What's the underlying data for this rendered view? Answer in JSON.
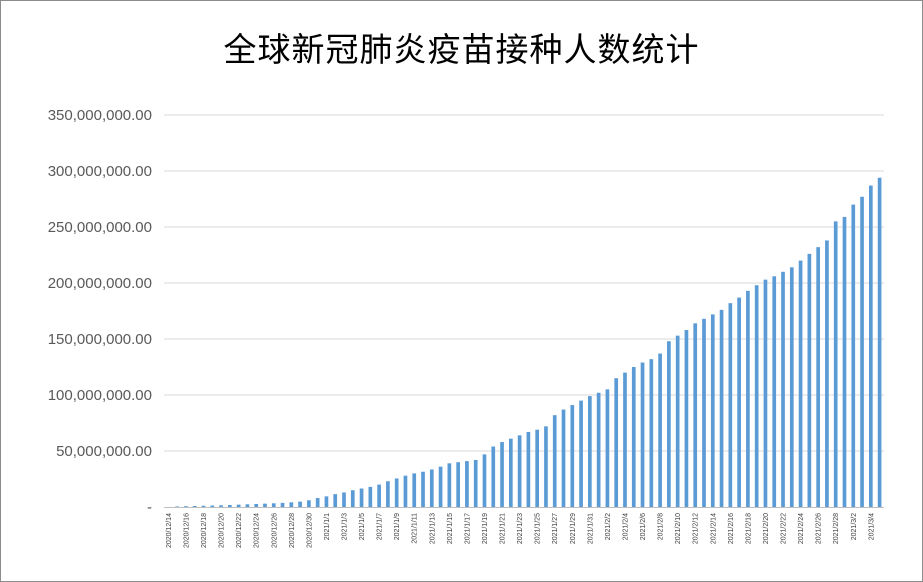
{
  "chart_data": {
    "type": "bar",
    "title": "全球新冠肺炎疫苗接种人数统计",
    "xlabel": "",
    "ylabel": "",
    "ylim": [
      0,
      350000000
    ],
    "yticks": [
      {
        "value": 0,
        "label": "-"
      },
      {
        "value": 50000000,
        "label": "50,000,000.00"
      },
      {
        "value": 100000000,
        "label": "100,000,000.00"
      },
      {
        "value": 150000000,
        "label": "150,000,000.00"
      },
      {
        "value": 200000000,
        "label": "200,000,000.00"
      },
      {
        "value": 250000000,
        "label": "250,000,000.00"
      },
      {
        "value": 300000000,
        "label": "300,000,000.00"
      },
      {
        "value": 350000000,
        "label": "350,000,000.00"
      }
    ],
    "grid": true,
    "legend": "none",
    "bar_color": "#5b9bd5",
    "categories": [
      "2020/12/14",
      "2020/12/15",
      "2020/12/16",
      "2020/12/17",
      "2020/12/18",
      "2020/12/19",
      "2020/12/20",
      "2020/12/21",
      "2020/12/22",
      "2020/12/23",
      "2020/12/24",
      "2020/12/25",
      "2020/12/26",
      "2020/12/27",
      "2020/12/28",
      "2020/12/29",
      "2020/12/30",
      "2020/12/31",
      "2021/1/1",
      "2021/1/2",
      "2021/1/3",
      "2021/1/4",
      "2021/1/5",
      "2021/1/6",
      "2021/1/7",
      "2021/1/8",
      "2021/1/9",
      "2021/1/10",
      "2021/1/11",
      "2021/1/12",
      "2021/1/13",
      "2021/1/14",
      "2021/1/15",
      "2021/1/16",
      "2021/1/17",
      "2021/1/18",
      "2021/1/19",
      "2021/1/20",
      "2021/1/21",
      "2021/1/22",
      "2021/1/23",
      "2021/1/24",
      "2021/1/25",
      "2021/1/26",
      "2021/1/27",
      "2021/1/28",
      "2021/1/29",
      "2021/1/30",
      "2021/1/31",
      "2021/2/1",
      "2021/2/2",
      "2021/2/3",
      "2021/2/4",
      "2021/2/5",
      "2021/2/6",
      "2021/2/7",
      "2021/2/8",
      "2021/2/9",
      "2021/2/10",
      "2021/2/11",
      "2021/2/12",
      "2021/2/13",
      "2021/2/14",
      "2021/2/15",
      "2021/2/16",
      "2021/2/17",
      "2021/2/18",
      "2021/2/19",
      "2021/2/20",
      "2021/2/21",
      "2021/2/22",
      "2021/2/23",
      "2021/2/24",
      "2021/2/25",
      "2021/2/26",
      "2021/2/27",
      "2021/2/28",
      "2021/3/1",
      "2021/3/2",
      "2021/3/3",
      "2021/3/4",
      "2021/3/5"
    ],
    "x_tick_labels": [
      "2020/12/14",
      "2020/12/16",
      "2020/12/18",
      "2020/12/20",
      "2020/12/22",
      "2020/12/24",
      "2020/12/26",
      "2020/12/28",
      "2020/12/30",
      "2021/1/1",
      "2021/1/3",
      "2021/1/5",
      "2021/1/7",
      "2021/1/9",
      "2021/1/11",
      "2021/1/13",
      "2021/1/15",
      "2021/1/17",
      "2021/1/19",
      "2021/1/21",
      "2021/1/23",
      "2021/1/25",
      "2021/1/27",
      "2021/1/29",
      "2021/1/31",
      "2021/2/2",
      "2021/2/4",
      "2021/2/6",
      "2021/2/8",
      "2021/2/10",
      "2021/2/12",
      "2021/2/14",
      "2021/2/16",
      "2021/2/18",
      "2021/2/20",
      "2021/2/22",
      "2021/2/24",
      "2021/2/26",
      "2021/2/28",
      "2021/3/2",
      "2021/3/4"
    ],
    "values": [
      20000,
      500000,
      700000,
      900000,
      1100000,
      1300000,
      1500000,
      1800000,
      2100000,
      2400000,
      2700000,
      3000000,
      3300000,
      3700000,
      4200000,
      4800000,
      6000000,
      8000000,
      9500000,
      11500000,
      13000000,
      15000000,
      16500000,
      18000000,
      20000000,
      23000000,
      25500000,
      28000000,
      30000000,
      31500000,
      33500000,
      36000000,
      39000000,
      40000000,
      41000000,
      42000000,
      47000000,
      54000000,
      58000000,
      61000000,
      64000000,
      67000000,
      69000000,
      72000000,
      82000000,
      87000000,
      91000000,
      95000000,
      99000000,
      102000000,
      105000000,
      115000000,
      120000000,
      125000000,
      129000000,
      132000000,
      137000000,
      148000000,
      153000000,
      158000000,
      164000000,
      168000000,
      172000000,
      176000000,
      182000000,
      187000000,
      193000000,
      198000000,
      203000000,
      206000000,
      210000000,
      214000000,
      220000000,
      226000000,
      232000000,
      238000000,
      255000000,
      259000000,
      270000000,
      277000000,
      287000000,
      294000000
    ]
  }
}
